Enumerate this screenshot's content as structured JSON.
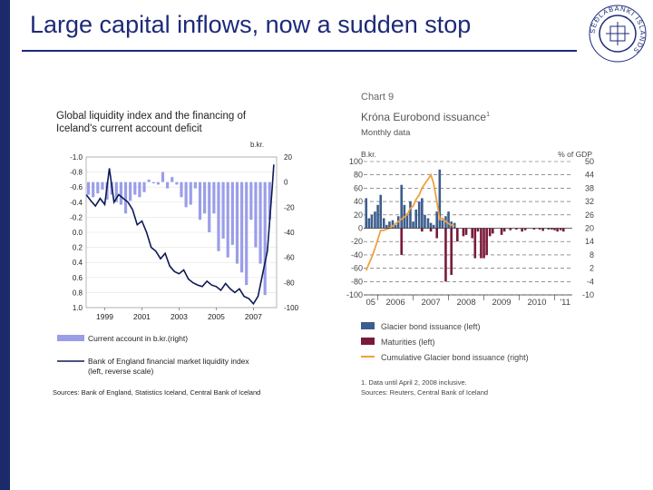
{
  "slide": {
    "title": "Large capital inflows, now a sudden stop"
  },
  "seal": {
    "text": "SEÐLABANKI ÍSLANDS"
  },
  "chart_data": [
    {
      "type": "bar",
      "title": "Global liquidity index and the financing of Iceland's current account deficit",
      "left_axis": {
        "ticks": [
          "-1.0",
          "-0.8",
          "-0.6",
          "-0.4",
          "-0.2",
          "0.0",
          "0.2",
          "0.4",
          "0.6",
          "0.8",
          "1.0"
        ],
        "range": [
          -1.0,
          1.0
        ],
        "reverse": true
      },
      "right_axis": {
        "unit": "b.kr.",
        "ticks": [
          "20",
          "0",
          "-20",
          "-40",
          "-60",
          "-80",
          "-100"
        ],
        "range": [
          20,
          -100
        ]
      },
      "x_ticks": [
        "1999",
        "2001",
        "2003",
        "2005",
        "2007"
      ],
      "x_range": [
        1998.0,
        2008.25
      ],
      "series": [
        {
          "name": "Current account in b.kr.(right)",
          "type": "bar",
          "axis": "right",
          "x": [
            1998.125,
            1998.375,
            1998.625,
            1998.875,
            1999.125,
            1999.375,
            1999.625,
            1999.875,
            2000.125,
            2000.375,
            2000.625,
            2000.875,
            2001.125,
            2001.375,
            2001.625,
            2001.875,
            2002.125,
            2002.375,
            2002.625,
            2002.875,
            2003.125,
            2003.375,
            2003.625,
            2003.875,
            2004.125,
            2004.375,
            2004.625,
            2004.875,
            2005.125,
            2005.375,
            2005.625,
            2005.875,
            2006.125,
            2006.375,
            2006.625,
            2006.875,
            2007.125,
            2007.375,
            2007.625,
            2007.875
          ],
          "values": [
            -10,
            -12,
            -9,
            -6,
            -14,
            -10,
            -16,
            -18,
            -25,
            -15,
            -10,
            -12,
            -8,
            2,
            -1,
            -2,
            8,
            -5,
            4,
            -2,
            -12,
            -20,
            -18,
            -5,
            -30,
            -25,
            -40,
            -25,
            -55,
            -45,
            -60,
            -50,
            -65,
            -72,
            -82,
            -30,
            -52,
            -65,
            -90,
            -30
          ]
        },
        {
          "name": "Bank of England financial market liquidity index (left, reverse scale)",
          "type": "line",
          "axis": "left",
          "x": [
            1998.0,
            1998.25,
            1998.5,
            1998.75,
            1999.0,
            1999.25,
            1999.5,
            1999.75,
            2000.0,
            2000.25,
            2000.5,
            2000.75,
            2001.0,
            2001.25,
            2001.5,
            2001.75,
            2002.0,
            2002.25,
            2002.5,
            2002.75,
            2003.0,
            2003.25,
            2003.5,
            2003.75,
            2004.0,
            2004.25,
            2004.5,
            2004.75,
            2005.0,
            2005.25,
            2005.5,
            2005.75,
            2006.0,
            2006.25,
            2006.5,
            2006.75,
            2007.0,
            2007.25,
            2007.5,
            2007.75,
            2008.0,
            2008.1
          ],
          "values": [
            -0.5,
            -0.42,
            -0.35,
            -0.45,
            -0.37,
            -0.85,
            -0.4,
            -0.5,
            -0.45,
            -0.4,
            -0.3,
            -0.1,
            -0.15,
            0.0,
            0.2,
            0.25,
            0.35,
            0.28,
            0.45,
            0.52,
            0.55,
            0.5,
            0.62,
            0.67,
            0.7,
            0.72,
            0.65,
            0.7,
            0.72,
            0.77,
            0.68,
            0.75,
            0.8,
            0.75,
            0.85,
            0.88,
            0.95,
            0.85,
            0.55,
            0.25,
            -0.55,
            -0.9
          ]
        }
      ],
      "source": "Sources: Bank of England, Statistics Iceland, Central Bank of Iceland"
    },
    {
      "type": "bar",
      "chart_label": "Chart 9",
      "title": "Króna Eurobond issuance",
      "title_sup": "1",
      "subtitle": "Monthly data",
      "left_axis": {
        "unit": "B.kr.",
        "ticks": [
          "100",
          "80",
          "60",
          "40",
          "20",
          "0",
          "-20",
          "-40",
          "-60",
          "-80",
          "-100"
        ],
        "range": [
          -100,
          100
        ]
      },
      "right_axis": {
        "unit": "% of GDP",
        "ticks": [
          "50",
          "44",
          "38",
          "32",
          "26",
          "20",
          "14",
          "8",
          "2",
          "-4",
          "-10"
        ],
        "range": [
          -10,
          50
        ]
      },
      "x_ticks": [
        "05",
        "2006",
        "2007",
        "2008",
        "2009",
        "2010",
        "'11"
      ],
      "x_range": [
        2005.6,
        2011.5
      ],
      "series": [
        {
          "name": "Glacier bond issuance (left)",
          "type": "bar",
          "x": [
            2005.67,
            2005.75,
            2005.83,
            2005.92,
            2006.0,
            2006.08,
            2006.17,
            2006.25,
            2006.33,
            2006.42,
            2006.5,
            2006.58,
            2006.67,
            2006.75,
            2006.83,
            2006.92,
            2007.0,
            2007.08,
            2007.17,
            2007.25,
            2007.33,
            2007.42,
            2007.5,
            2007.58,
            2007.67,
            2007.75,
            2007.83,
            2007.92,
            2008.0,
            2008.08,
            2008.17
          ],
          "values": [
            45,
            15,
            20,
            25,
            35,
            50,
            15,
            5,
            10,
            12,
            5,
            18,
            65,
            35,
            22,
            40,
            10,
            28,
            40,
            45,
            20,
            15,
            8,
            5,
            25,
            88,
            12,
            18,
            25,
            10,
            8
          ]
        },
        {
          "name": "Maturities (left)",
          "type": "bar",
          "x": [
            2006.67,
            2007.25,
            2007.5,
            2007.67,
            2007.92,
            2008.08,
            2008.25,
            2008.42,
            2008.5,
            2008.67,
            2008.75,
            2008.83,
            2008.92,
            2009.0,
            2009.08,
            2009.17,
            2009.25,
            2009.5,
            2009.58,
            2009.75,
            2009.92,
            2010.08,
            2010.17,
            2010.42,
            2010.58,
            2010.67,
            2010.83,
            2010.92,
            2011.0,
            2011.08,
            2011.17,
            2011.25
          ],
          "values": [
            -40,
            -5,
            -5,
            -15,
            -80,
            -70,
            -20,
            -12,
            -10,
            -15,
            -45,
            -5,
            -45,
            -45,
            -40,
            -12,
            -8,
            -10,
            -5,
            -3,
            -2,
            -5,
            -3,
            -2,
            -2,
            -4,
            -2,
            -2,
            -3,
            -5,
            -3,
            -5
          ]
        },
        {
          "name": "Cumulative Glacier bond issuance (right)",
          "type": "line",
          "axis": "right",
          "x": [
            2005.67,
            2005.75,
            2005.83,
            2005.92,
            2006.0,
            2006.08,
            2006.17,
            2006.25,
            2006.33,
            2006.42,
            2006.5,
            2006.58,
            2006.67,
            2006.75,
            2006.83,
            2006.92,
            2007.0,
            2007.08,
            2007.17,
            2007.25,
            2007.33,
            2007.42,
            2007.5,
            2007.58,
            2007.67,
            2007.75,
            2007.83,
            2007.92,
            2008.0,
            2008.08,
            2008.17
          ],
          "values": [
            1,
            4,
            7,
            11,
            15,
            19,
            19,
            19.5,
            20,
            21,
            22,
            23,
            24,
            25,
            26,
            29,
            30,
            33,
            35,
            38,
            40,
            42,
            44,
            40,
            32,
            24,
            24.5,
            23,
            22,
            21.5,
            21
          ]
        }
      ],
      "footnote": "1. Data until April 2, 2008 inclusive.",
      "source": "Sources: Reuters, Central Bank of Iceland"
    }
  ]
}
